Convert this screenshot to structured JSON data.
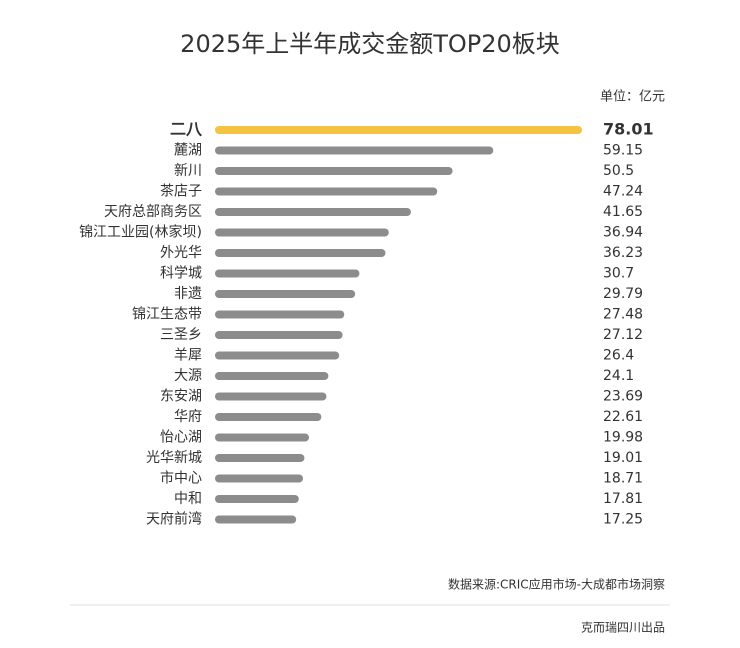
{
  "chart_data": {
    "type": "hbar",
    "title": "2025年上半年成交金额TOP20板块",
    "unit": "单位：亿元",
    "categories": [
      "二八",
      "麓湖",
      "新川",
      "茶店子",
      "天府总部商务区",
      "锦江工业园(林家坝)",
      "外光华",
      "科学城",
      "非遗",
      "锦江生态带",
      "三圣乡",
      "羊犀",
      "大源",
      "东安湖",
      "华府",
      "怡心湖",
      "光华新城",
      "市中心",
      "中和",
      "天府前湾"
    ],
    "values": [
      78.01,
      59.15,
      50.5,
      47.24,
      41.65,
      36.94,
      36.23,
      30.7,
      29.79,
      27.48,
      27.12,
      26.4,
      24.1,
      23.69,
      22.61,
      19.98,
      19.01,
      18.71,
      17.81,
      17.25
    ],
    "colors": [
      "#f5c342",
      "#8c8c8c",
      "#8c8c8c",
      "#8c8c8c",
      "#8c8c8c",
      "#8c8c8c",
      "#8c8c8c",
      "#8c8c8c",
      "#8c8c8c",
      "#8c8c8c",
      "#8c8c8c",
      "#8c8c8c",
      "#8c8c8c",
      "#8c8c8c",
      "#8c8c8c",
      "#8c8c8c",
      "#8c8c8c",
      "#8c8c8c",
      "#8c8c8c",
      "#8c8c8c"
    ],
    "source": "数据来源:CRIC应用市场-大成都市场洞察",
    "footer": "克而瑞四川出品"
  }
}
